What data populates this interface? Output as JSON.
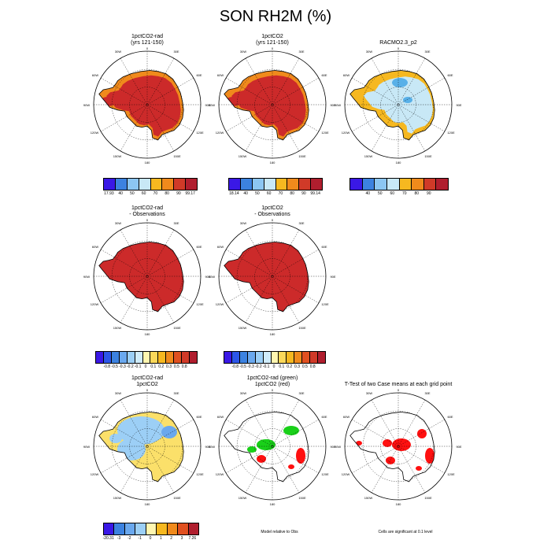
{
  "title": "SON RH2M (%)",
  "colors": {
    "land_dark_red": "#cc2a2a",
    "land_orange": "#f08a1c",
    "land_yellow_orange": "#f6b820",
    "land_light_blue": "#c8e8f6",
    "land_blue": "#58b0e8",
    "land_yellow": "#fbe06a",
    "green": "#19d019",
    "red": "#ff1010"
  },
  "panels": [
    {
      "title_lines": [
        "1pctCO2-rad",
        "(yrs 121-150)"
      ]
    },
    {
      "title_lines": [
        "1pctCO2",
        "(yrs 121-150)"
      ]
    },
    {
      "title_lines": [
        "",
        "RACMO2.3_p2"
      ]
    },
    {
      "title_lines": [
        "1pctCO2-rad",
        "- Observations"
      ]
    },
    {
      "title_lines": [
        "1pctCO2",
        "- Observations"
      ]
    },
    {
      "title_lines": [
        "1pctCO2-rad",
        "1pctCO2"
      ]
    },
    {
      "title_lines": [
        "1pctCO2-rad (green)",
        "1pctCO2 (red)"
      ]
    },
    {
      "title_lines": [
        "",
        "T-Test of two Case means at each grid point"
      ]
    }
  ],
  "map_labels": {
    "top": "0",
    "bottom": "180",
    "left": "90W",
    "right": "90E",
    "ul1": "30W",
    "ul2": "60W",
    "ur1": "30E",
    "ur2": "60E",
    "ll1": "120W",
    "ll2": "150W",
    "lr1": "120E",
    "lr2": "150E"
  },
  "colorbars": [
    {
      "colors": [
        "#3a18e6",
        "#3c82e0",
        "#8cc6f2",
        "#c8e8f6",
        "#f6b820",
        "#f08a1c",
        "#d03a28",
        "#b01e2e"
      ],
      "ticks": [
        "17.93",
        "40",
        "50",
        "60",
        "70",
        "80",
        "90",
        "99.17"
      ]
    },
    {
      "colors": [
        "#3a18e6",
        "#3c82e0",
        "#8cc6f2",
        "#c8e8f6",
        "#f6b820",
        "#f08a1c",
        "#d03a28",
        "#b01e2e"
      ],
      "ticks": [
        "18.14",
        "40",
        "50",
        "60",
        "70",
        "80",
        "90",
        "99.14"
      ]
    },
    {
      "colors": [
        "#3a18e6",
        "#3c82e0",
        "#8cc6f2",
        "#c8e8f6",
        "#f6b820",
        "#f08a1c",
        "#d03a28",
        "#b01e2e"
      ],
      "ticks": [
        "",
        "40",
        "50",
        "60",
        "70",
        "80",
        "90",
        ""
      ]
    },
    {
      "colors": [
        "#3a18e6",
        "#2c56e8",
        "#3c82e0",
        "#6aa8ee",
        "#9ccff6",
        "#d0ecfa",
        "#fff6b0",
        "#fbd85a",
        "#f6b820",
        "#f08a1c",
        "#e05020",
        "#d03a28",
        "#b01e2e"
      ],
      "ticks": [
        "-0.8",
        "-0.5",
        "-0.3",
        "-0.2",
        "-0.1",
        "0",
        "0.1",
        "0.2",
        "0.3",
        "0.5",
        "0.8"
      ]
    },
    {
      "colors": [
        "#3a18e6",
        "#2c56e8",
        "#3c82e0",
        "#6aa8ee",
        "#9ccff6",
        "#d0ecfa",
        "#fff6b0",
        "#fbd85a",
        "#f6b820",
        "#f08a1c",
        "#e05020",
        "#d03a28",
        "#b01e2e"
      ],
      "ticks": [
        "-0.8",
        "-0.5",
        "-0.3",
        "-0.2",
        "-0.1",
        "0",
        "0.1",
        "0.2",
        "0.3",
        "0.5",
        "0.8"
      ]
    },
    {
      "colors": [
        "#3a18e6",
        "#3c82e0",
        "#6aa8ee",
        "#9ccff6",
        "#fff6b0",
        "#f6b820",
        "#f08a1c",
        "#e05020",
        "#b01e2e"
      ],
      "ticks": [
        "-20.31",
        "-3",
        "-2",
        "-1",
        "0",
        "1",
        "2",
        "3",
        "7.26"
      ]
    }
  ],
  "notes": {
    "model_relative": "Model relative to Obs",
    "cells_significant": "Cells are significant at 0.1 level"
  },
  "chart_data": {
    "type": "heatmap",
    "title": "SON RH2M (%)",
    "projection": "south polar stereographic (Antarctica)",
    "panels": [
      {
        "name": "1pctCO2-rad (yrs 121-150)",
        "levels": [
          17.93,
          40,
          50,
          60,
          70,
          80,
          90,
          99.17
        ],
        "dominant": "80-90+"
      },
      {
        "name": "1pctCO2 (yrs 121-150)",
        "levels": [
          18.14,
          40,
          50,
          60,
          70,
          80,
          90,
          99.14
        ],
        "dominant": "80-90+"
      },
      {
        "name": "RACMO2.3_p2",
        "levels": [
          40,
          50,
          60,
          70,
          80,
          90
        ],
        "dominant": "60-70"
      },
      {
        "name": "1pctCO2-rad - Observations",
        "levels": [
          -0.8,
          -0.5,
          -0.3,
          -0.2,
          -0.1,
          0,
          0.1,
          0.2,
          0.3,
          0.5,
          0.8
        ],
        "dominant": ">0.8"
      },
      {
        "name": "1pctCO2 - Observations",
        "levels": [
          -0.8,
          -0.5,
          -0.3,
          -0.2,
          -0.1,
          0,
          0.1,
          0.2,
          0.3,
          0.5,
          0.8
        ],
        "dominant": ">0.8"
      },
      {
        "name": "1pctCO2-rad - 1pctCO2",
        "levels": [
          -20.31,
          -3,
          -2,
          -1,
          0,
          1,
          2,
          3,
          7.26
        ],
        "dominant": "-1 to 1"
      },
      {
        "name": "1pctCO2-rad (green) 1pctCO2 (red)",
        "type": "significance"
      },
      {
        "name": "T-Test of two Case means at each grid point",
        "type": "significance"
      }
    ]
  }
}
